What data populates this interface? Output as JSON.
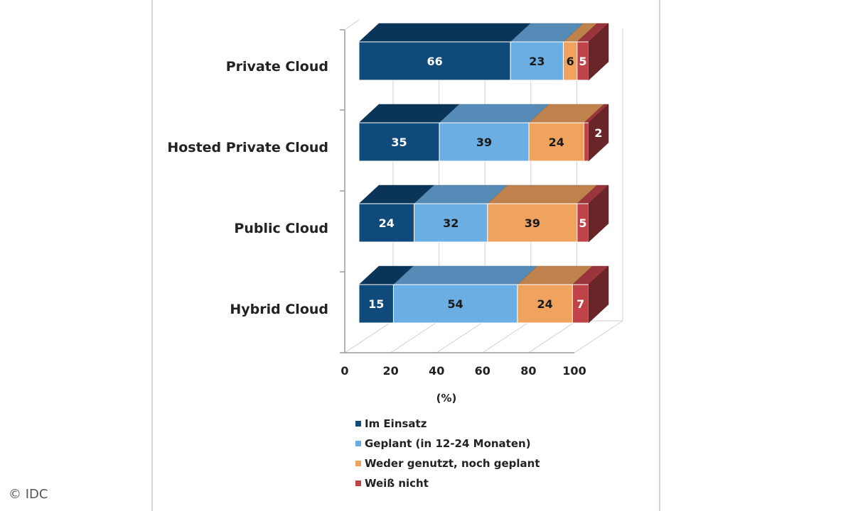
{
  "chart_data": {
    "type": "bar",
    "orientation": "horizontal",
    "stacked": true,
    "three_d": true,
    "categories": [
      "Private Cloud",
      "Hosted Private Cloud",
      "Public Cloud",
      "Hybrid Cloud"
    ],
    "series": [
      {
        "name": "Im Einsatz",
        "values": [
          66,
          35,
          24,
          15
        ],
        "color": "#0f4a7a"
      },
      {
        "name": "Geplant (in 12-24 Monaten)",
        "values": [
          23,
          39,
          32,
          54
        ],
        "color": "#6aaee3"
      },
      {
        "name": "Weder genutzt, noch geplant",
        "values": [
          6,
          24,
          39,
          24
        ],
        "color": "#f0a35f"
      },
      {
        "name": "Weiß nicht",
        "values": [
          5,
          2,
          5,
          7
        ],
        "color": "#c0434a"
      }
    ],
    "xticks": [
      "0",
      "20",
      "40",
      "60",
      "80",
      "100"
    ],
    "xlim": [
      0,
      100
    ],
    "xlabel": "(%)",
    "grid": true,
    "legend_position": "bottom"
  },
  "copyright": "© IDC"
}
